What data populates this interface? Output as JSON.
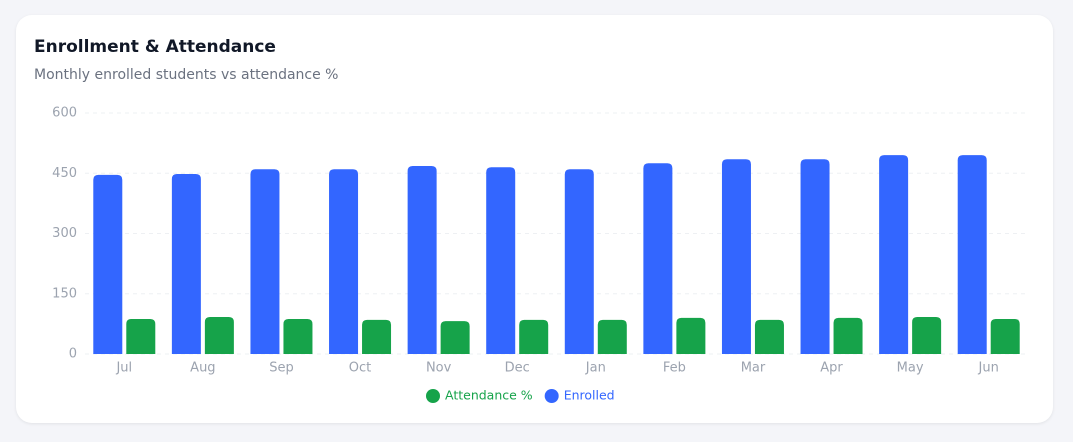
{
  "chart_data": {
    "type": "bar",
    "title": "Enrollment & Attendance",
    "subtitle": "Monthly enrolled students vs attendance %",
    "categories": [
      "Jul",
      "Aug",
      "Sep",
      "Oct",
      "Nov",
      "Dec",
      "Jan",
      "Feb",
      "Mar",
      "Apr",
      "May",
      "Jun"
    ],
    "series": [
      {
        "name": "Attendance %",
        "color": "#16a34a",
        "values": [
          87,
          92,
          87,
          85,
          82,
          85,
          85,
          90,
          85,
          90,
          92,
          87
        ]
      },
      {
        "name": "Enrolled",
        "color": "#3366ff",
        "values": [
          446,
          448,
          460,
          460,
          468,
          465,
          460,
          475,
          485,
          485,
          495,
          495
        ]
      }
    ],
    "ylim": [
      0,
      600
    ],
    "yticks": [
      0,
      150,
      300,
      450,
      600
    ],
    "grid": true
  }
}
